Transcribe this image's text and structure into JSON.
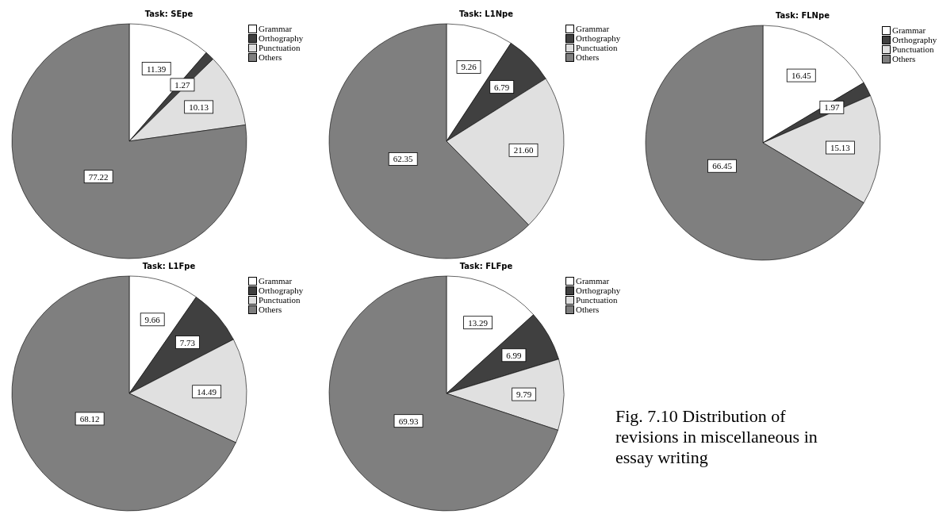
{
  "chart_data": [
    {
      "type": "pie",
      "title": "Task: SEpe",
      "categories": [
        "Grammar",
        "Orthography",
        "Punctuation",
        "Others"
      ],
      "values": [
        11.39,
        1.27,
        10.13,
        77.22
      ],
      "value_labels": [
        "11.39",
        "1.27",
        "10.13",
        "77.22"
      ],
      "colors": [
        "#ffffff",
        "#404040",
        "#e0e0e0",
        "#7f7f7f"
      ],
      "legend": "top right"
    },
    {
      "type": "pie",
      "title": "Task: L1Npe",
      "categories": [
        "Grammar",
        "Orthography",
        "Punctuation",
        "Others"
      ],
      "values": [
        9.26,
        6.79,
        21.6,
        62.35
      ],
      "value_labels": [
        "9.26",
        "6.79",
        "21.60",
        "62.35"
      ],
      "colors": [
        "#ffffff",
        "#404040",
        "#e0e0e0",
        "#7f7f7f"
      ],
      "legend": "top right"
    },
    {
      "type": "pie",
      "title": "Task: FLNpe",
      "categories": [
        "Grammar",
        "Orthography",
        "Punctuation",
        "Others"
      ],
      "values": [
        16.45,
        1.97,
        15.13,
        66.45
      ],
      "value_labels": [
        "16.45",
        "1.97",
        "15.13",
        "66.45"
      ],
      "colors": [
        "#ffffff",
        "#404040",
        "#e0e0e0",
        "#7f7f7f"
      ],
      "legend": "top right"
    },
    {
      "type": "pie",
      "title": "Task: L1Fpe",
      "categories": [
        "Grammar",
        "Orthography",
        "Punctuation",
        "Others"
      ],
      "values": [
        9.66,
        7.73,
        14.49,
        68.12
      ],
      "value_labels": [
        "9.66",
        "7.73",
        "14.49",
        "68.12"
      ],
      "colors": [
        "#ffffff",
        "#404040",
        "#e0e0e0",
        "#7f7f7f"
      ],
      "legend": "top right"
    },
    {
      "type": "pie",
      "title": "Task: FLFpe",
      "categories": [
        "Grammar",
        "Orthography",
        "Punctuation",
        "Others"
      ],
      "values": [
        13.29,
        6.99,
        9.79,
        69.93
      ],
      "value_labels": [
        "13.29",
        "6.99",
        "9.79",
        "69.93"
      ],
      "colors": [
        "#ffffff",
        "#404040",
        "#e0e0e0",
        "#7f7f7f"
      ],
      "legend": "top right",
      "annotations": [
        "Fig. 7.10 Distribution of revisions in miscellaneous in essay writing"
      ]
    }
  ]
}
